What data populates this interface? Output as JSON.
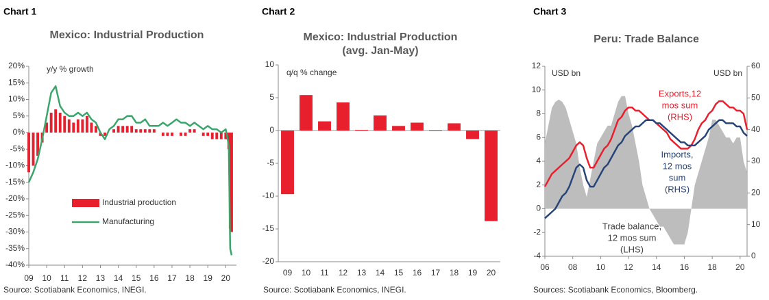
{
  "chart_data": [
    {
      "type": "combo",
      "label": "Chart 1",
      "title": [
        "Mexico: Industrial Production"
      ],
      "source": "Source: Scotiabank Economics, INEGI.",
      "annotations": [
        "y/y % growth"
      ],
      "legend": "lower center",
      "x": [
        2009,
        2009.25,
        2009.5,
        2009.75,
        2010,
        2010.25,
        2010.5,
        2010.75,
        2011,
        2011.25,
        2011.5,
        2011.75,
        2012,
        2012.25,
        2012.5,
        2012.75,
        2013,
        2013.25,
        2013.5,
        2013.75,
        2014,
        2014.25,
        2014.5,
        2014.75,
        2015,
        2015.25,
        2015.5,
        2015.75,
        2016,
        2016.25,
        2016.5,
        2016.75,
        2017,
        2017.25,
        2017.5,
        2017.75,
        2018,
        2018.25,
        2018.5,
        2018.75,
        2019,
        2019.25,
        2019.5,
        2019.75,
        2020,
        2020.08,
        2020.17,
        2020.25,
        2020.33
      ],
      "series": [
        {
          "name": "Industrial production",
          "type": "bar",
          "color": "#e8202e",
          "values": [
            -12,
            -10,
            -7,
            -3,
            3,
            6,
            7,
            6,
            5,
            4,
            3,
            4,
            4,
            5,
            3,
            2,
            -1,
            -1,
            0,
            1,
            2,
            2,
            2,
            2,
            1,
            1,
            1,
            1,
            1,
            0,
            -1,
            -1,
            -1,
            0,
            -1,
            -1,
            1,
            1,
            0,
            -1,
            -1,
            -2,
            -2,
            -2,
            -2,
            -2,
            -5,
            -29,
            -30
          ]
        },
        {
          "name": "Manufacturing",
          "type": "line",
          "color": "#3aa56a",
          "values": [
            -15,
            -12,
            -8,
            -2,
            5,
            12,
            14,
            8,
            6,
            5,
            5,
            6,
            5,
            6,
            4,
            3,
            0,
            -2,
            1,
            2,
            4,
            4,
            5,
            5,
            3,
            3,
            4,
            2,
            2,
            2,
            3,
            2,
            3,
            4,
            3,
            3,
            2,
            3,
            2,
            1,
            2,
            1,
            1,
            0,
            1,
            -1,
            -4,
            -35,
            -37
          ]
        }
      ],
      "xlim": [
        2009,
        2020.6
      ],
      "xticks": [
        {
          "value": 2009,
          "label": "09"
        },
        {
          "value": 2010,
          "label": "10"
        },
        {
          "value": 2011,
          "label": "11"
        },
        {
          "value": 2012,
          "label": "12"
        },
        {
          "value": 2013,
          "label": "13"
        },
        {
          "value": 2014,
          "label": "14"
        },
        {
          "value": 2015,
          "label": "15"
        },
        {
          "value": 2016,
          "label": "16"
        },
        {
          "value": 2017,
          "label": "17"
        },
        {
          "value": 2018,
          "label": "18"
        },
        {
          "value": 2019,
          "label": "19"
        },
        {
          "value": 2020,
          "label": "20"
        }
      ],
      "ylim": [
        -40,
        20
      ],
      "yticks": [
        {
          "value": 20,
          "label": "20%"
        },
        {
          "value": 15,
          "label": "15%"
        },
        {
          "value": 10,
          "label": "10%"
        },
        {
          "value": 5,
          "label": "5%"
        },
        {
          "value": 0,
          "label": "0%"
        },
        {
          "value": -5,
          "label": "-5%"
        },
        {
          "value": -10,
          "label": "-10%"
        },
        {
          "value": -15,
          "label": "-15%"
        },
        {
          "value": -20,
          "label": "-20%"
        },
        {
          "value": -25,
          "label": "-25%"
        },
        {
          "value": -30,
          "label": "-30%"
        },
        {
          "value": -35,
          "label": "-35%"
        },
        {
          "value": -40,
          "label": "-40%"
        }
      ]
    },
    {
      "type": "bar",
      "label": "Chart 2",
      "title": [
        "Mexico: Industrial Production",
        "(avg. Jan-May)"
      ],
      "source": "Source: Scotiabank Economics, INEGI.",
      "annotations": [
        "q/q % change"
      ],
      "color": "#e8202e",
      "categories": [
        "09",
        "10",
        "11",
        "12",
        "13",
        "14",
        "15",
        "16",
        "17",
        "18",
        "19",
        "20"
      ],
      "values": [
        -9.7,
        5.4,
        1.4,
        4.3,
        0.1,
        2.3,
        0.7,
        1.2,
        -0.1,
        1.1,
        -1.3,
        -13.8
      ],
      "ylim": [
        -20,
        10
      ],
      "yticks": [
        10,
        5,
        0,
        -5,
        -10,
        -15,
        -20
      ]
    },
    {
      "type": "combo",
      "label": "Chart 3",
      "title": [
        "Peru: Trade Balance"
      ],
      "source": "Sources: Scotiabank Economics, Bloomberg.",
      "annotations": [
        "USD bn",
        "USD bn"
      ],
      "x": [
        2006,
        2006.25,
        2006.5,
        2006.75,
        2007,
        2007.25,
        2007.5,
        2007.75,
        2008,
        2008.25,
        2008.5,
        2008.75,
        2009,
        2009.25,
        2009.5,
        2009.75,
        2010,
        2010.25,
        2010.5,
        2010.75,
        2011,
        2011.25,
        2011.5,
        2011.75,
        2012,
        2012.25,
        2012.5,
        2012.75,
        2013,
        2013.25,
        2013.5,
        2013.75,
        2014,
        2014.25,
        2014.5,
        2014.75,
        2015,
        2015.25,
        2015.5,
        2015.75,
        2016,
        2016.25,
        2016.5,
        2016.75,
        2017,
        2017.25,
        2017.5,
        2017.75,
        2018,
        2018.25,
        2018.5,
        2018.75,
        2019,
        2019.25,
        2019.5,
        2019.75,
        2020,
        2020.25,
        2020.5
      ],
      "series": [
        {
          "name": [
            "Trade balance,",
            "12 mos sum",
            "(LHS)"
          ],
          "type": "area",
          "color": "#bdbdbd",
          "label_color": "#404040",
          "values": [
            5.5,
            7,
            8.5,
            9,
            9.2,
            9,
            8.5,
            7.5,
            6.5,
            5.5,
            3.5,
            2,
            1,
            2.5,
            4,
            5.5,
            6,
            6.5,
            7,
            7,
            8,
            9,
            9.5,
            9.5,
            8,
            7,
            5.5,
            4,
            2,
            1,
            0,
            -0.5,
            -1,
            -1.5,
            -1.5,
            -2,
            -2.5,
            -3,
            -3,
            -3,
            -3,
            -2,
            0,
            2,
            3,
            4,
            5,
            6,
            7.5,
            7.5,
            7,
            6.5,
            6,
            6,
            5.5,
            6,
            6,
            4,
            3
          ]
        },
        {
          "name": [
            "Exports,12",
            "mos sum",
            "(RHS)"
          ],
          "type": "line",
          "axis": "y2",
          "color": "#e8202e",
          "values": [
            22,
            24,
            26,
            27,
            28,
            29,
            30,
            31,
            33,
            35,
            36,
            35,
            31,
            28,
            28,
            30,
            32,
            34,
            35,
            37,
            40,
            43,
            44,
            46,
            47,
            47,
            46,
            46,
            45,
            44,
            43,
            43,
            42,
            41,
            40,
            39,
            37,
            36,
            35,
            34,
            34,
            34,
            35,
            37,
            40,
            42,
            43,
            45,
            46,
            48,
            49,
            49,
            48,
            47,
            47,
            46,
            46,
            45,
            40
          ]
        },
        {
          "name": [
            "Imports,",
            "12 mos",
            "sum",
            "(RHS)"
          ],
          "type": "line",
          "axis": "y2",
          "color": "#264478",
          "values": [
            12,
            13,
            14,
            15,
            17,
            19,
            20,
            22,
            25,
            28,
            29,
            28,
            24,
            22,
            22,
            24,
            26,
            28,
            29,
            31,
            33,
            35,
            36,
            38,
            39,
            40,
            41,
            41,
            42,
            43,
            43,
            43,
            42,
            42,
            41,
            40,
            39,
            38,
            37,
            36,
            36,
            35,
            35,
            35,
            36,
            37,
            38,
            40,
            41,
            42,
            43,
            43,
            42,
            42,
            42,
            41,
            41,
            39,
            38
          ]
        }
      ],
      "xlim": [
        2006,
        2020.5
      ],
      "xticks": [
        {
          "value": 2006,
          "label": "06"
        },
        {
          "value": 2008,
          "label": "08"
        },
        {
          "value": 2010,
          "label": "10"
        },
        {
          "value": 2012,
          "label": "12"
        },
        {
          "value": 2014,
          "label": "14"
        },
        {
          "value": 2016,
          "label": "16"
        },
        {
          "value": 2018,
          "label": "18"
        },
        {
          "value": 2020,
          "label": "20"
        }
      ],
      "ylim": [
        -4,
        12
      ],
      "yticks": [
        12,
        10,
        8,
        6,
        4,
        2,
        0,
        -2,
        -4
      ],
      "y2lim": [
        0,
        60
      ],
      "y2ticks": [
        60,
        50,
        40,
        30,
        20,
        10,
        0
      ]
    }
  ]
}
